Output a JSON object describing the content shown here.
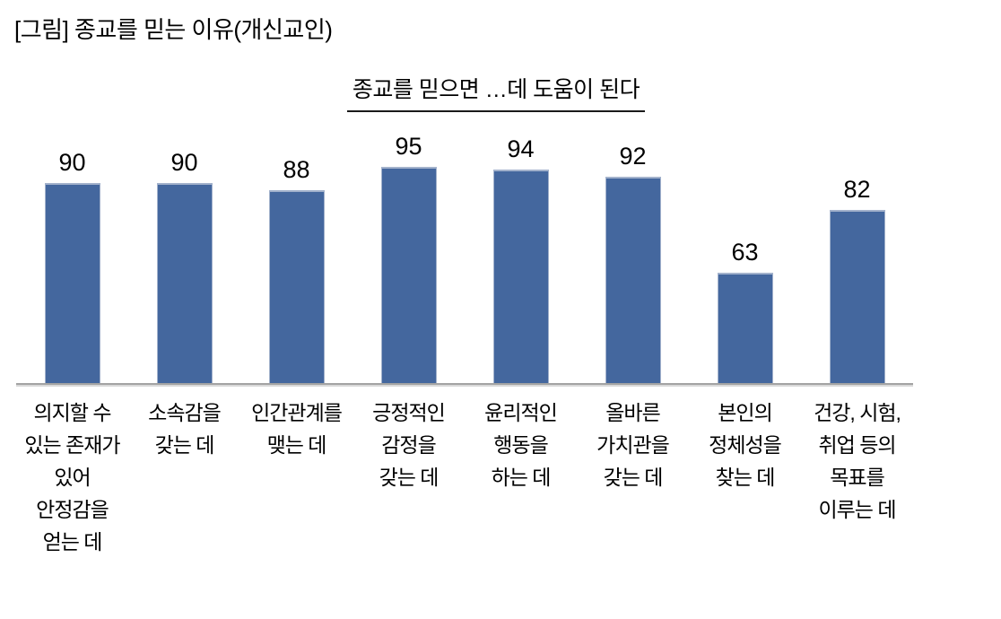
{
  "title": "[그림] 종교를 믿는 이유(개신교인)",
  "colors": {
    "background": "#ffffff",
    "text": "#000000",
    "bar_fill": "#44679e",
    "bar_edge": "#a3b2cc",
    "axis_line": "#a3a3a3",
    "underline": "#1a1a1a"
  },
  "chart_data": {
    "type": "bar",
    "title": "종교를 믿으면 …데 도움이 된다",
    "categories": [
      [
        "의지할 수",
        "있는 존재가",
        "있어",
        "안정감을",
        "얻는 데"
      ],
      [
        "소속감을",
        "갖는 데"
      ],
      [
        "인간관계를",
        "맺는 데"
      ],
      [
        "긍정적인",
        "감정을",
        "갖는 데"
      ],
      [
        "윤리적인",
        "행동을",
        "하는 데"
      ],
      [
        "올바른",
        "가치관을",
        "갖는 데"
      ],
      [
        "본인의",
        "정체성을",
        "찾는 데"
      ],
      [
        "건강, 시험,",
        "취업 등의",
        "목표를",
        "이루는 데"
      ]
    ],
    "values": [
      90,
      90,
      88,
      95,
      94,
      92,
      63,
      82
    ],
    "xlabel": "",
    "ylabel": "",
    "ylim": [
      30,
      100
    ],
    "grid": false,
    "legend": false,
    "value_labels_shown": true,
    "bar_color": "#44679e"
  }
}
